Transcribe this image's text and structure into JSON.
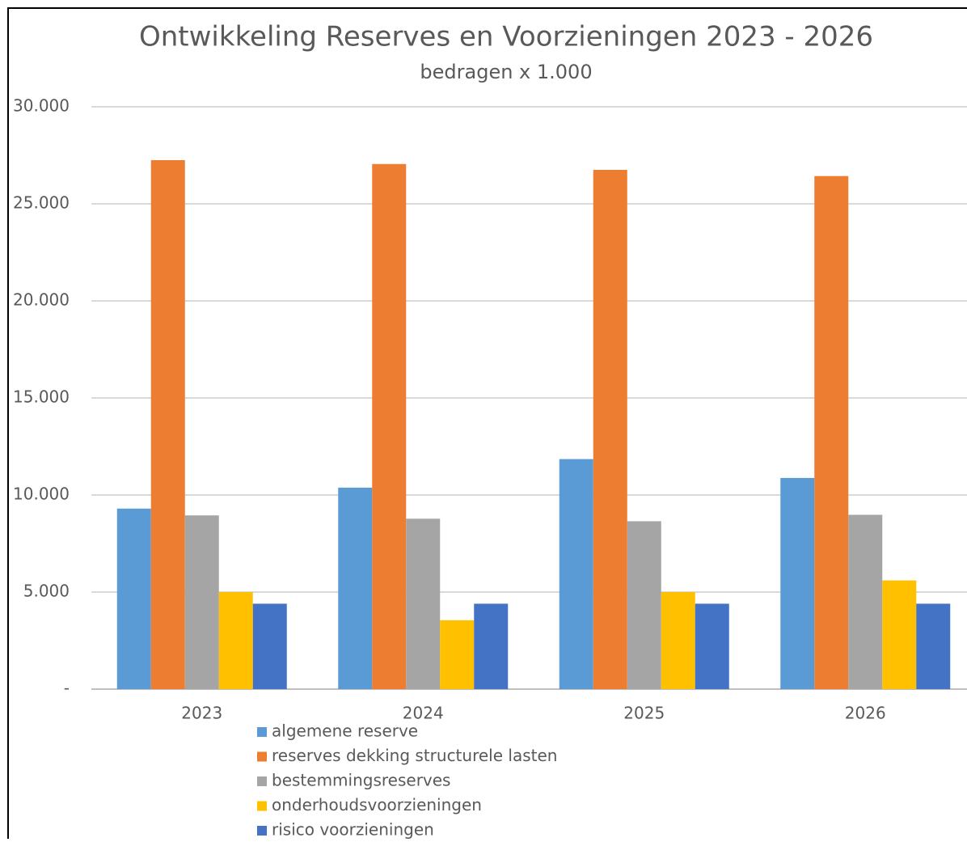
{
  "chart_data": {
    "type": "bar",
    "title": "Ontwikkeling Reserves en Voorzieningen 2023 - 2026",
    "subtitle": "bedragen x 1.000",
    "categories": [
      "2023",
      "2024",
      "2025",
      "2026"
    ],
    "series": [
      {
        "name": "algemene reserve",
        "color": "#5b9bd5",
        "values": [
          9300,
          10380,
          11850,
          10880
        ]
      },
      {
        "name": "reserves dekking structurele lasten",
        "color": "#ed7d31",
        "values": [
          27250,
          27050,
          26750,
          26430
        ]
      },
      {
        "name": "bestemmingsreserves",
        "color": "#a5a5a5",
        "values": [
          8950,
          8780,
          8650,
          8980
        ]
      },
      {
        "name": "onderhoudsvoorzieningen",
        "color": "#ffc000",
        "values": [
          5000,
          3550,
          5000,
          5600
        ]
      },
      {
        "name": "risico voorzieningen",
        "color": "#4472c4",
        "values": [
          4400,
          4400,
          4400,
          4400
        ]
      }
    ],
    "ylim": [
      0,
      30000
    ],
    "yticks": [
      {
        "value": 0,
        "label": "-"
      },
      {
        "value": 5000,
        "label": "5.000"
      },
      {
        "value": 10000,
        "label": "10.000"
      },
      {
        "value": 15000,
        "label": "15.000"
      },
      {
        "value": 20000,
        "label": "20.000"
      },
      {
        "value": 25000,
        "label": "25.000"
      },
      {
        "value": 30000,
        "label": "30.000"
      }
    ],
    "grid": true,
    "legend": "bottom"
  }
}
